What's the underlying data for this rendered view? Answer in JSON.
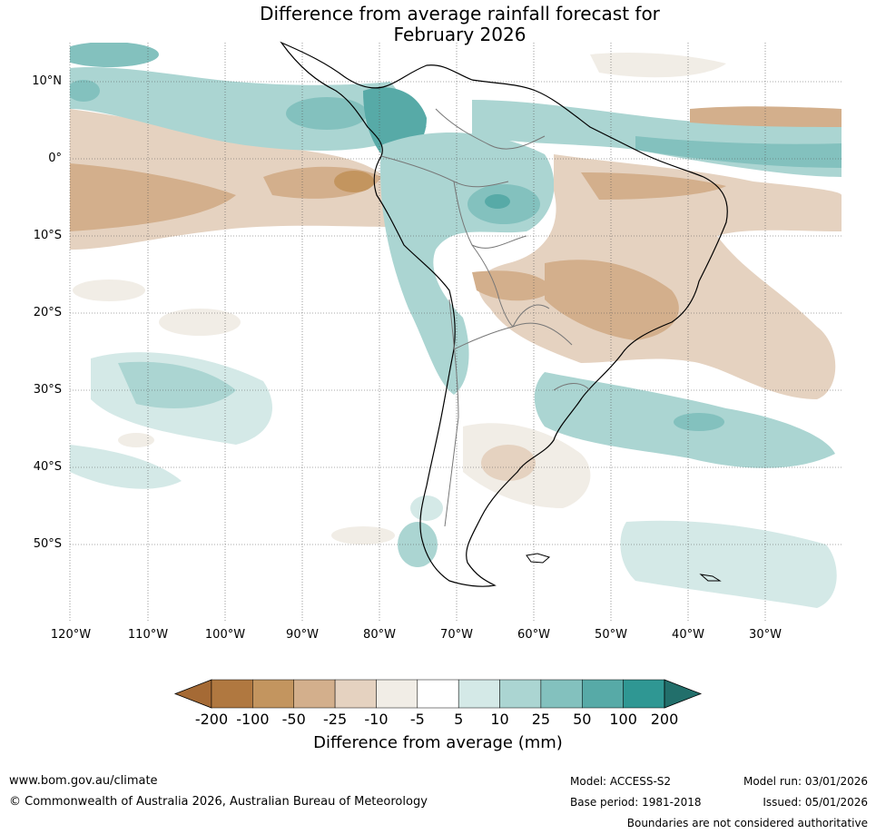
{
  "title": {
    "line1": "Difference from average rainfall forecast for",
    "line2": "February 2026"
  },
  "lat_labels": [
    "10°N",
    "0°",
    "10°S",
    "20°S",
    "30°S",
    "40°S",
    "50°S"
  ],
  "lon_labels": [
    "120°W",
    "110°W",
    "100°W",
    "90°W",
    "80°W",
    "70°W",
    "60°W",
    "50°W",
    "40°W",
    "30°W"
  ],
  "colorbar": {
    "title": "Difference from average (mm)",
    "ticks": [
      "-200",
      "-100",
      "-50",
      "-25",
      "-10",
      "-5",
      "5",
      "10",
      "25",
      "50",
      "100",
      "200"
    ],
    "colors": [
      "#a56a35",
      "#b07840",
      "#c3955f",
      "#d3af8c",
      "#e5d2c0",
      "#f1ede6",
      "#ffffff",
      "#d4e9e7",
      "#abd5d2",
      "#83c1be",
      "#57aaa7",
      "#2f9793",
      "#226f6b"
    ]
  },
  "footer": {
    "website": "www.bom.gov.au/climate",
    "copyright": "© Commonwealth of Australia 2026, Australian Bureau of Meteorology",
    "model": "Model: ACCESS-S2",
    "base_period": "Base period: 1981-2018",
    "model_run": "Model run: 03/01/2026",
    "issued": "Issued: 05/01/2026",
    "disclaimer": "Boundaries are not considered authoritative"
  }
}
